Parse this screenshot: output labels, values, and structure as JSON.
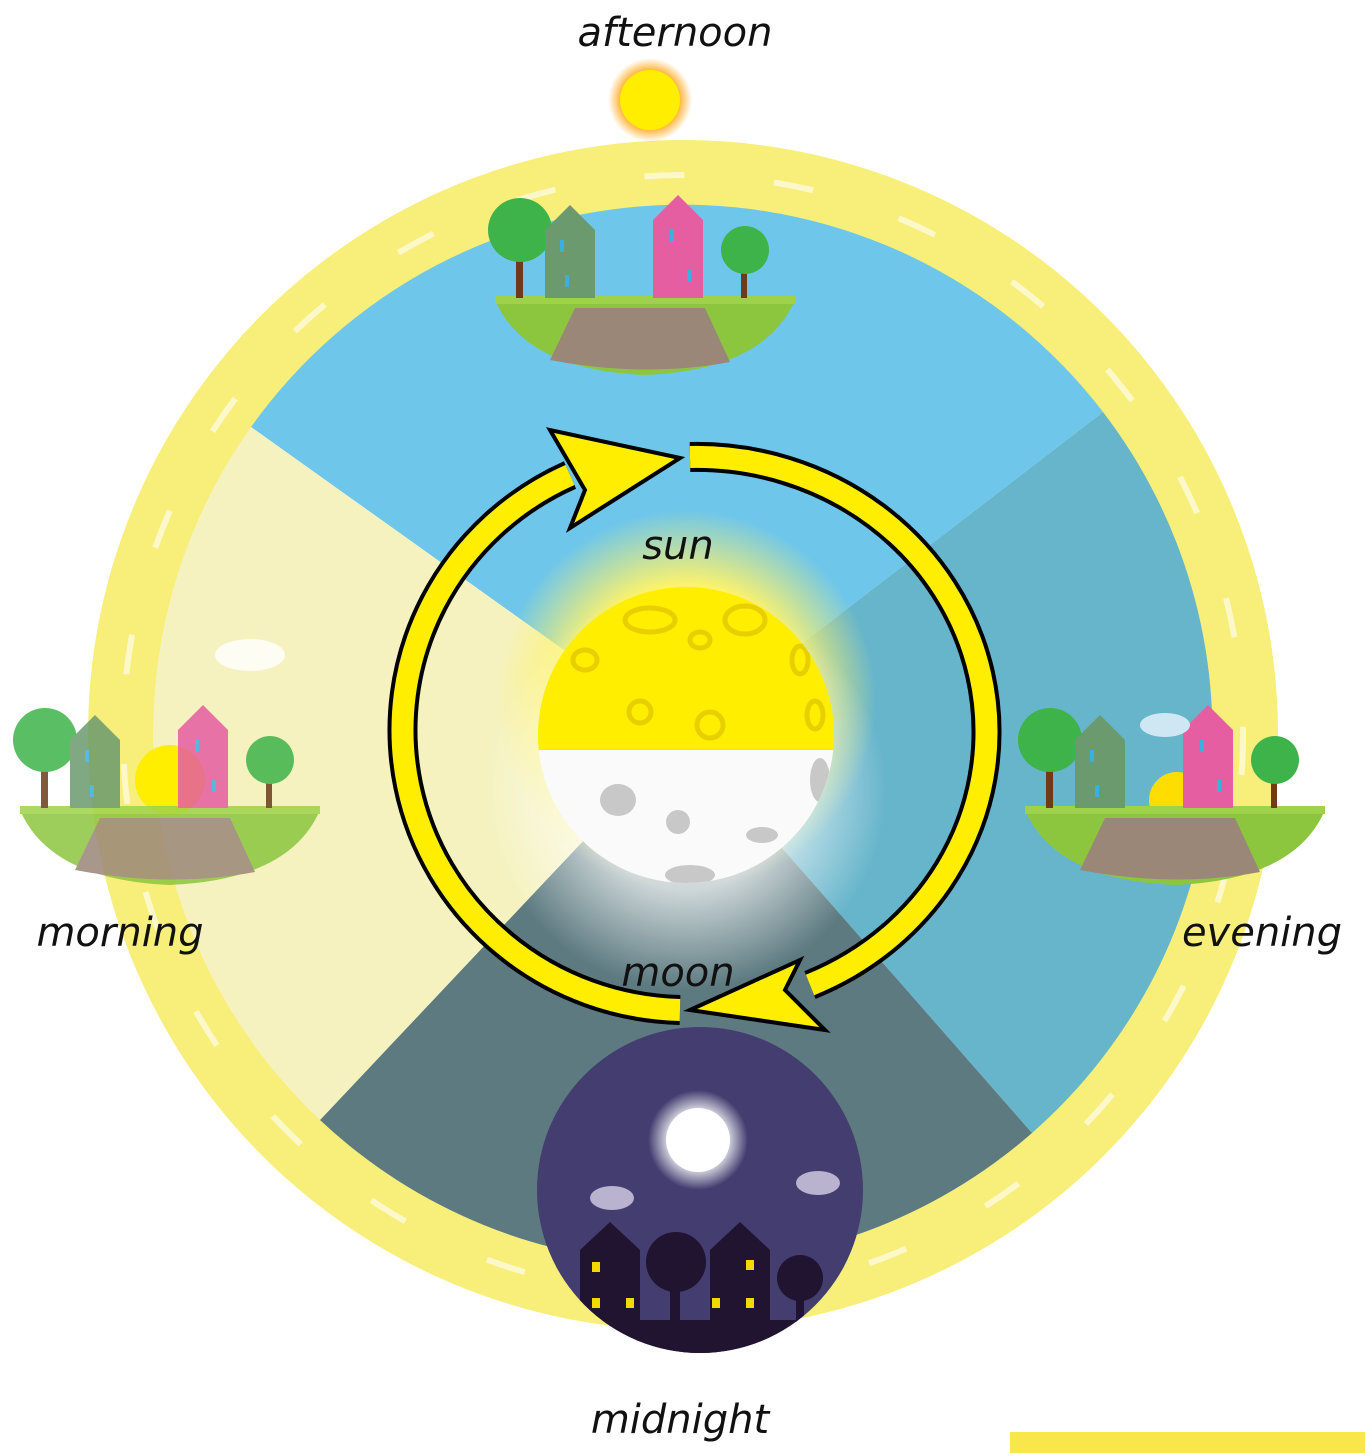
{
  "labels": {
    "top": "afternoon",
    "left": "morning",
    "right": "evening",
    "bottom": "midnight",
    "center_top": "sun",
    "center_bottom": "moon"
  }
}
